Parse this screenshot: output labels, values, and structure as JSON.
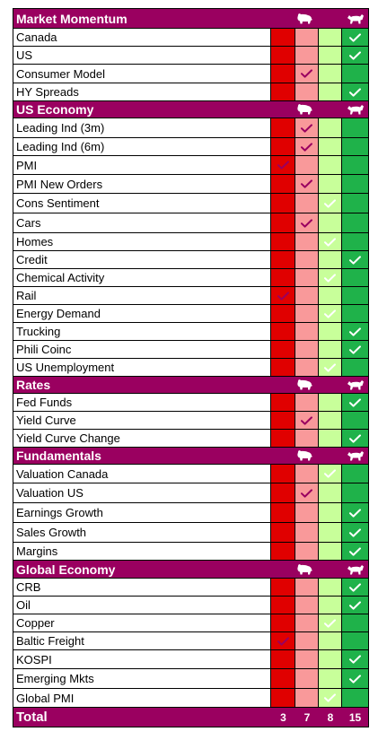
{
  "chart_data": {
    "type": "table",
    "title": "",
    "columns": 4,
    "colors": {
      "header_bg": "#9a0060",
      "col0_red": "#e00000",
      "col1_pink": "#f9999a",
      "col2_lightgreen": "#c8ff9a",
      "col3_green": "#1fb24a",
      "check_on_red_pink": "#9a0060",
      "check_on_green": "#ffffff"
    },
    "icons": [
      "bear-icon",
      "bull-icon"
    ],
    "sections": [
      {
        "name": "Market Momentum",
        "rows": [
          {
            "label": "Canada",
            "col": 3
          },
          {
            "label": "US",
            "col": 3
          },
          {
            "label": "Consumer Model",
            "col": 1
          },
          {
            "label": "HY Spreads",
            "col": 3
          }
        ]
      },
      {
        "name": "US Economy",
        "rows": [
          {
            "label": "Leading Ind (3m)",
            "col": 1
          },
          {
            "label": "Leading Ind (6m)",
            "col": 1
          },
          {
            "label": "PMI",
            "col": 0
          },
          {
            "label": "PMI New Orders",
            "col": 1
          },
          {
            "label": "Cons Sentiment",
            "col": 2
          },
          {
            "label": "Cars",
            "col": 1
          },
          {
            "label": "Homes",
            "col": 2
          },
          {
            "label": "Credit",
            "col": 3
          },
          {
            "label": "Chemical Activity",
            "col": 2
          },
          {
            "label": "Rail",
            "col": 0
          },
          {
            "label": "Energy Demand",
            "col": 2
          },
          {
            "label": "Trucking",
            "col": 3
          },
          {
            "label": "Phili Coinc",
            "col": 3
          },
          {
            "label": "US Unemployment",
            "col": 2
          }
        ]
      },
      {
        "name": "Rates",
        "rows": [
          {
            "label": "Fed Funds",
            "col": 3
          },
          {
            "label": "Yield Curve",
            "col": 1
          },
          {
            "label": "Yield Curve Change",
            "col": 3
          }
        ]
      },
      {
        "name": "Fundamentals",
        "rows": [
          {
            "label": "Valuation Canada",
            "col": 2
          },
          {
            "label": "Valuation US",
            "col": 1
          },
          {
            "label": "Earnings Growth",
            "col": 3
          },
          {
            "label": "Sales Growth",
            "col": 3
          },
          {
            "label": "Margins",
            "col": 3
          }
        ]
      },
      {
        "name": "Global Economy",
        "rows": [
          {
            "label": "CRB",
            "col": 3
          },
          {
            "label": "Oil",
            "col": 3
          },
          {
            "label": "Copper",
            "col": 2
          },
          {
            "label": "Baltic Freight",
            "col": 0
          },
          {
            "label": "KOSPI",
            "col": 3
          },
          {
            "label": "Emerging Mkts",
            "col": 3
          },
          {
            "label": "Global PMI",
            "col": 2
          }
        ]
      }
    ],
    "total": {
      "label": "Total",
      "values": [
        "3",
        "7",
        "8",
        "15"
      ]
    }
  }
}
